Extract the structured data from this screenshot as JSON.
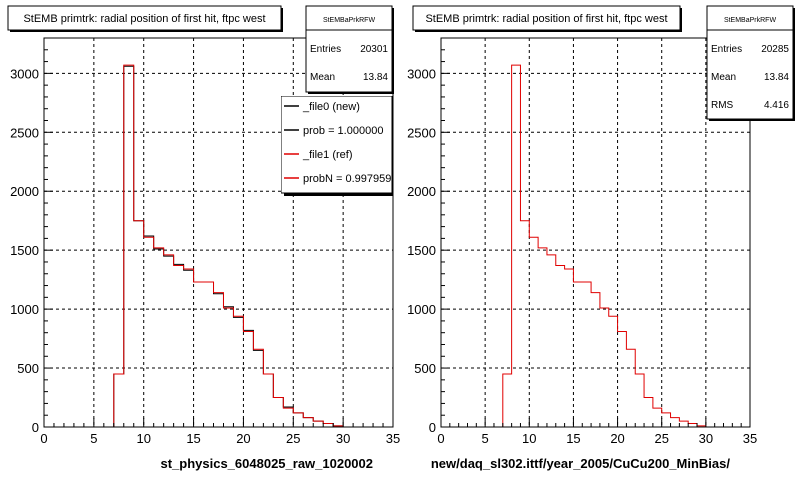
{
  "chart_data": [
    {
      "type": "line",
      "title": "StEMB primtrk: radial position of first hit, ftpc west",
      "xlabel": "st_physics_6048025_raw_1020002",
      "ylabel": "",
      "xlim": [
        0,
        35
      ],
      "ylim": [
        0,
        3300
      ],
      "x_ticks": [
        "0",
        "5",
        "10",
        "15",
        "20",
        "25",
        "30",
        "35"
      ],
      "y_ticks": [
        "0",
        "500",
        "1000",
        "1500",
        "2000",
        "2500",
        "3000"
      ],
      "grid": true,
      "bin_edges": [
        7,
        8,
        9,
        10,
        11,
        12,
        13,
        14,
        15,
        16,
        17,
        18,
        19,
        20,
        21,
        22,
        23,
        24,
        25,
        26,
        27,
        28,
        29,
        30
      ],
      "series": [
        {
          "name": "_file0 (new)",
          "color": "#000000",
          "values": [
            450,
            3060,
            1750,
            1620,
            1510,
            1450,
            1380,
            1330,
            1230,
            1230,
            1130,
            1020,
            930,
            820,
            650,
            450,
            250,
            170,
            120,
            80,
            50,
            30,
            10
          ]
        },
        {
          "name": "_file1 (ref)",
          "color": "#e00000",
          "values": [
            450,
            3070,
            1750,
            1610,
            1520,
            1460,
            1370,
            1340,
            1230,
            1230,
            1140,
            1010,
            940,
            810,
            660,
            450,
            250,
            160,
            120,
            80,
            50,
            30,
            10
          ]
        }
      ],
      "stats": {
        "name": "StEMBaPrkRFW",
        "rows": [
          {
            "label": "Entries",
            "value": "20301"
          },
          {
            "label": "Mean",
            "value": "13.84"
          }
        ]
      },
      "legend": {
        "placement": "top-right",
        "entries": [
          {
            "text": "_file0 (new)",
            "color": "#000000"
          },
          {
            "text": "prob = 1.000000",
            "color": "#000000"
          },
          {
            "text": "_file1 (ref)",
            "color": "#e00000"
          },
          {
            "text": "probN = 0.997959",
            "color": "#e00000"
          }
        ]
      }
    },
    {
      "type": "line",
      "title": "StEMB primtrk: radial position of first hit, ftpc west",
      "xlabel": "new/daq_sl302.ittf/year_2005/CuCu200_MinBias/",
      "ylabel": "",
      "xlim": [
        0,
        35
      ],
      "ylim": [
        0,
        3300
      ],
      "x_ticks": [
        "0",
        "5",
        "10",
        "15",
        "20",
        "25",
        "30",
        "35"
      ],
      "y_ticks": [
        "0",
        "500",
        "1000",
        "1500",
        "2000",
        "2500",
        "3000"
      ],
      "grid": true,
      "bin_edges": [
        7,
        8,
        9,
        10,
        11,
        12,
        13,
        14,
        15,
        16,
        17,
        18,
        19,
        20,
        21,
        22,
        23,
        24,
        25,
        26,
        27,
        28,
        29,
        30
      ],
      "series": [
        {
          "name": "",
          "color": "#e00000",
          "values": [
            450,
            3070,
            1750,
            1610,
            1520,
            1460,
            1370,
            1340,
            1230,
            1230,
            1140,
            1010,
            940,
            810,
            660,
            450,
            250,
            160,
            120,
            80,
            50,
            30,
            10
          ]
        }
      ],
      "stats": {
        "name": "StEMBaPrkRFW",
        "rows": [
          {
            "label": "Entries",
            "value": "20285"
          },
          {
            "label": "Mean",
            "value": "13.84"
          },
          {
            "label": "RMS",
            "value": "4.416"
          }
        ]
      }
    }
  ]
}
